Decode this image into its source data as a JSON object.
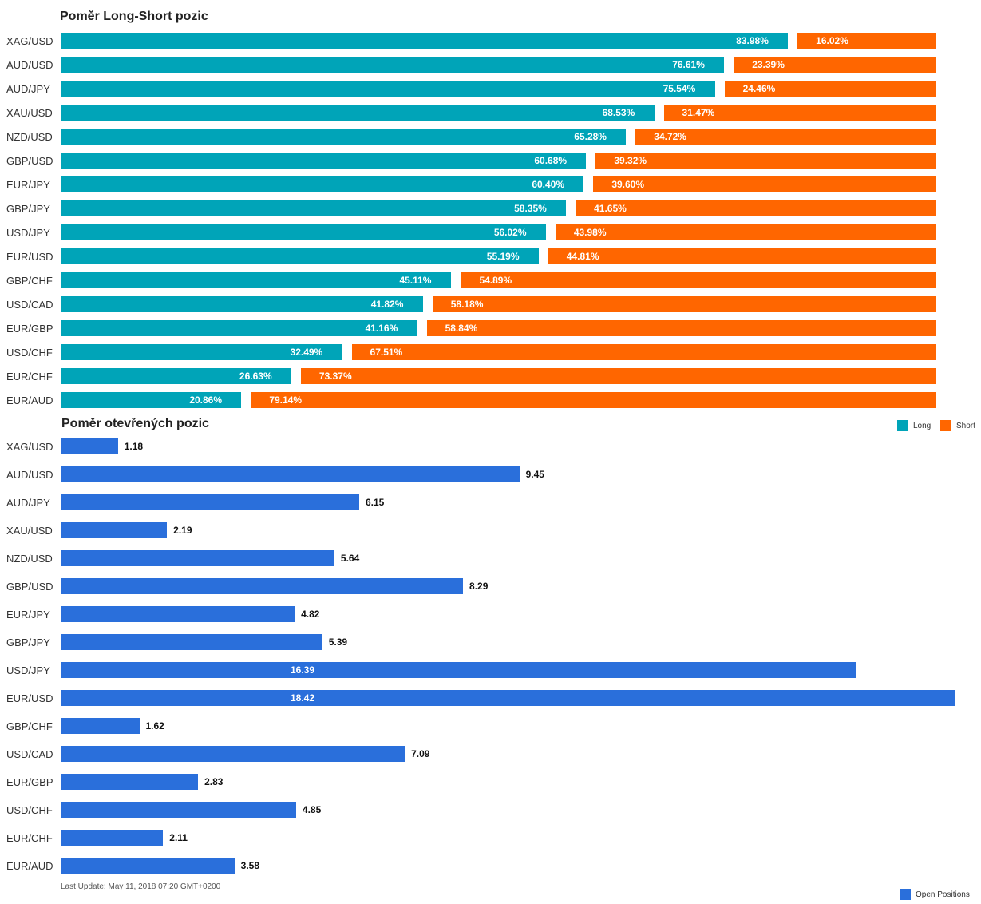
{
  "chart_data": [
    {
      "type": "bar",
      "orientation": "horizontal",
      "stacked": true,
      "title": "Poměr Long-Short pozic",
      "categories": [
        "XAG/USD",
        "AUD/USD",
        "AUD/JPY",
        "XAU/USD",
        "NZD/USD",
        "GBP/USD",
        "EUR/JPY",
        "GBP/JPY",
        "USD/JPY",
        "EUR/USD",
        "GBP/CHF",
        "USD/CAD",
        "EUR/GBP",
        "USD/CHF",
        "EUR/CHF",
        "EUR/AUD"
      ],
      "series": [
        {
          "name": "Long",
          "color": "#00a4b8",
          "values": [
            83.98,
            76.61,
            75.54,
            68.53,
            65.28,
            60.68,
            60.4,
            58.35,
            56.02,
            55.19,
            45.11,
            41.82,
            41.16,
            32.49,
            26.63,
            20.86
          ],
          "labels": [
            "83.98%",
            "76.61%",
            "75.54%",
            "68.53%",
            "65.28%",
            "60.68%",
            "60.40%",
            "58.35%",
            "56.02%",
            "55.19%",
            "45.11%",
            "41.82%",
            "41.16%",
            "32.49%",
            "26.63%",
            "20.86%"
          ]
        },
        {
          "name": "Short",
          "color": "#ff6600",
          "values": [
            16.02,
            23.39,
            24.46,
            31.47,
            34.72,
            39.32,
            39.6,
            41.65,
            43.98,
            44.81,
            54.89,
            58.18,
            58.84,
            67.51,
            73.37,
            79.14
          ],
          "labels": [
            "16.02%",
            "23.39%",
            "24.46%",
            "31.47%",
            "34.72%",
            "39.32%",
            "39.60%",
            "41.65%",
            "43.98%",
            "44.81%",
            "54.89%",
            "58.18%",
            "58.84%",
            "67.51%",
            "73.37%",
            "79.14%"
          ]
        }
      ],
      "xlim": [
        0,
        100
      ],
      "legend": "bottom-right"
    },
    {
      "type": "bar",
      "orientation": "horizontal",
      "title": "Poměr otevřených pozic",
      "categories": [
        "XAG/USD",
        "AUD/USD",
        "AUD/JPY",
        "XAU/USD",
        "NZD/USD",
        "GBP/USD",
        "EUR/JPY",
        "GBP/JPY",
        "USD/JPY",
        "EUR/USD",
        "GBP/CHF",
        "USD/CAD",
        "EUR/GBP",
        "USD/CHF",
        "EUR/CHF",
        "EUR/AUD"
      ],
      "series": [
        {
          "name": "Open Positions",
          "color": "#2a6fdb",
          "values": [
            1.18,
            9.45,
            6.15,
            2.19,
            5.64,
            8.29,
            4.82,
            5.39,
            16.39,
            18.42,
            1.62,
            7.09,
            2.83,
            4.85,
            2.11,
            3.58
          ],
          "labels": [
            "1.18",
            "9.45",
            "6.15",
            "2.19",
            "5.64",
            "8.29",
            "4.82",
            "5.39",
            "16.39",
            "18.42",
            "1.62",
            "7.09",
            "2.83",
            "4.85",
            "2.11",
            "3.58"
          ]
        }
      ],
      "xlim": [
        0,
        18.42
      ],
      "legend": "bottom-right"
    }
  ],
  "footer": "Last Update: May 11, 2018 07:20 GMT+0200"
}
